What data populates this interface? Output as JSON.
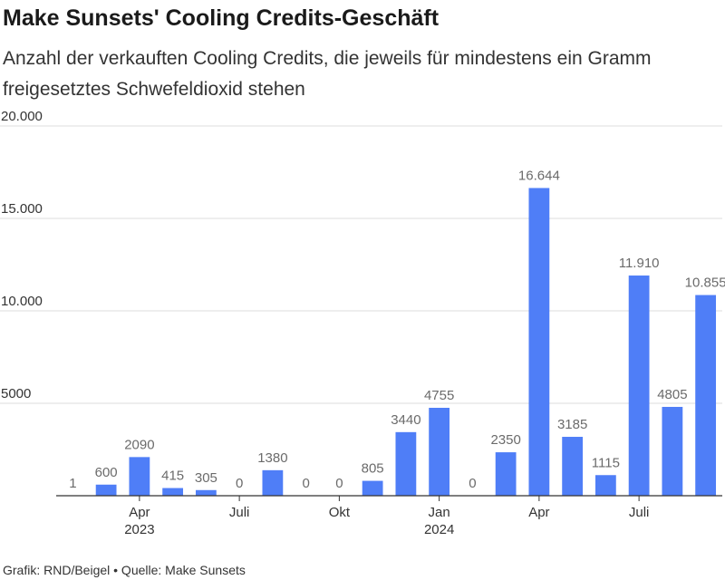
{
  "chart_data": {
    "type": "bar",
    "title": "Make Sunsets' Cooling Credits-Geschäft",
    "subtitle": "Anzahl der verkauften Cooling Credits, die jeweils für mindestens ein Gramm freigesetztes Schwefeldioxid stehen",
    "ylim": [
      0,
      20000
    ],
    "yticks": [
      {
        "value": 5000,
        "label": "5000"
      },
      {
        "value": 10000,
        "label": "10.000"
      },
      {
        "value": 15000,
        "label": "15.000"
      },
      {
        "value": 20000,
        "label": "20.000"
      }
    ],
    "bar_color": "#4f7ef7",
    "grid": true,
    "values": [
      1,
      600,
      2090,
      415,
      305,
      0,
      1380,
      0,
      0,
      805,
      3440,
      4755,
      0,
      2350,
      16644,
      3185,
      1115,
      11910,
      4805,
      10855
    ],
    "value_labels": [
      "1",
      "600",
      "2090",
      "415",
      "305",
      "0",
      "1380",
      "0",
      "0",
      "805",
      "3440",
      "4755",
      "0",
      "2350",
      "16.644",
      "3185",
      "1115",
      "11.910",
      "4805",
      "10.855"
    ],
    "x_tick_labels": [
      {
        "index": 2,
        "label": "Apr",
        "year": "2023"
      },
      {
        "index": 5,
        "label": "Juli",
        "year": ""
      },
      {
        "index": 8,
        "label": "Okt",
        "year": ""
      },
      {
        "index": 11,
        "label": "Jan",
        "year": "2024"
      },
      {
        "index": 14,
        "label": "Apr",
        "year": ""
      },
      {
        "index": 17,
        "label": "Juli",
        "year": ""
      }
    ]
  },
  "footer": "Grafik: RND/Beigel • Quelle: Make Sunsets"
}
